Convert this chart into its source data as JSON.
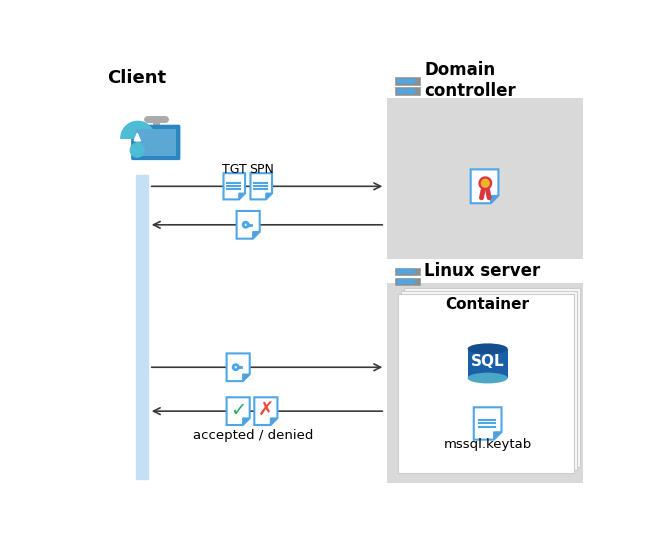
{
  "bg_color": "#ffffff",
  "client_label": "Client",
  "domain_label": "Domain\ncontroller",
  "linux_label": "Linux server",
  "container_label": "Container",
  "tgt_label": "TGT",
  "spn_label": "SPN",
  "accepted_denied_label": "accepted / denied",
  "mssql_label": "mssql.keytab",
  "box_color": "#d9d9d9",
  "container_white": "#ffffff",
  "arrow_color": "#3a3a3a",
  "doc_border": "#4da6e8",
  "doc_fold": "#5b9bd5",
  "doc_fill": "#ffffff",
  "key_color": "#4da6e8",
  "check_color": "#27ae60",
  "cross_color": "#e74c3c",
  "cert_red": "#d9363e",
  "cert_yellow": "#f0b429",
  "sql_top": "#4ba7c8",
  "sql_body": "#1a5fa8",
  "sql_bot": "#154e8c",
  "server_body": "#7f8c8d",
  "server_led": "#4da6e8",
  "client_person": "#4dbcd4",
  "client_monitor": "#2e86c1",
  "vline_color": "#c5dff5",
  "line_color": "#555555"
}
